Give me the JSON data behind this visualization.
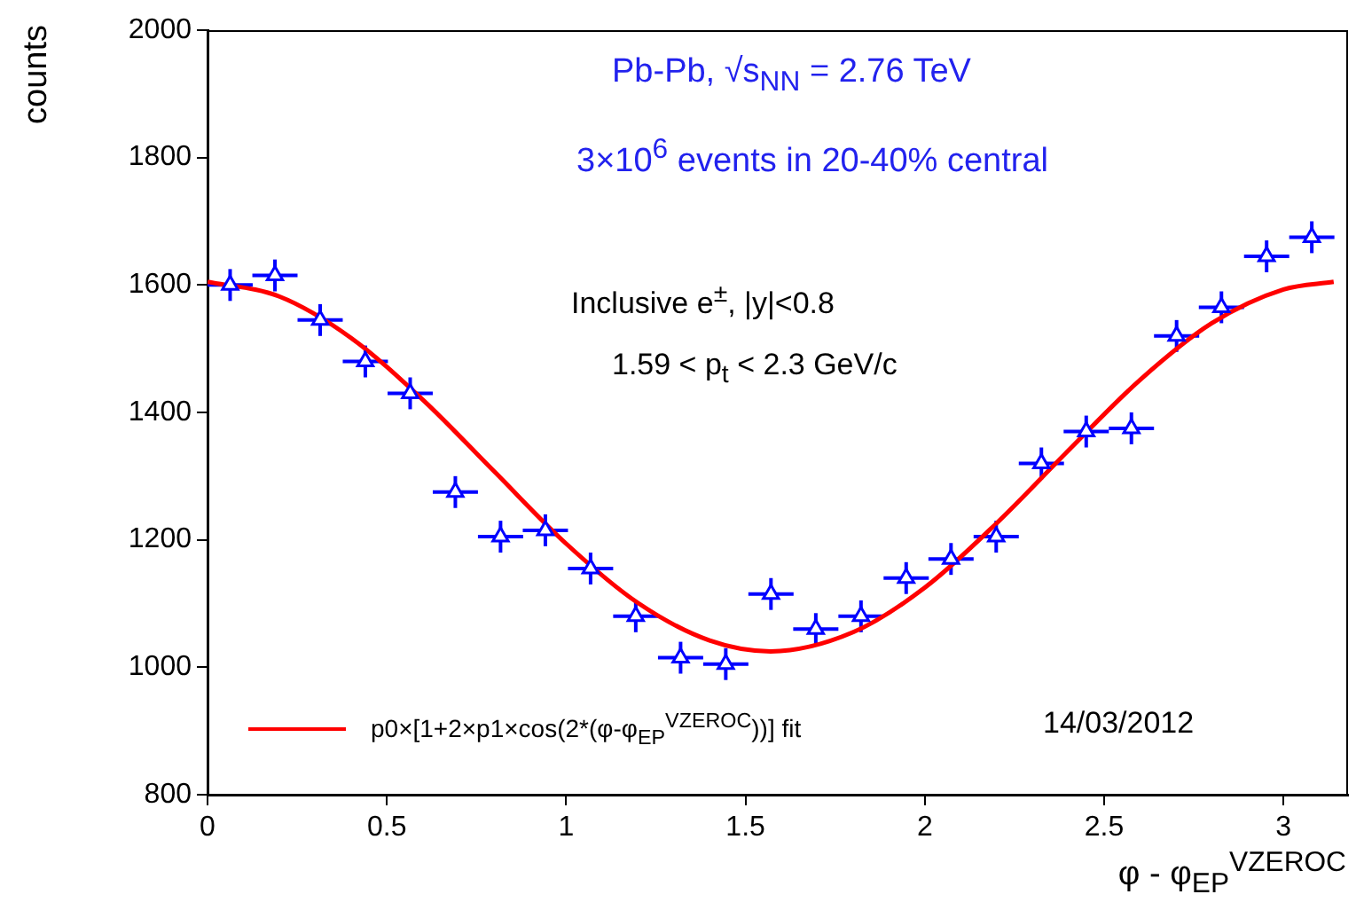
{
  "chart_data": {
    "type": "scatter",
    "xlabel": "φ - φ$_{EP}$$^{VZEROC}$",
    "ylabel": "counts",
    "xlim": [
      0,
      3.18
    ],
    "ylim": [
      800,
      2000
    ],
    "xticks": [
      0,
      0.5,
      1,
      1.5,
      2,
      2.5,
      3
    ],
    "yticks": [
      800,
      1000,
      1200,
      1400,
      1600,
      1800,
      2000
    ],
    "grid": false,
    "legend": "bottom left",
    "marker": "triangle",
    "annotations": [
      "Pb-Pb, √s$_{NN}$ = 2.76 TeV",
      "3×10$^{6}$ events in 20-40% central",
      "Inclusive e$^{±}$, |y|<0.8",
      "1.59 < p$_{t}$ < 2.3 GeV/c",
      "14/03/2012"
    ],
    "series": [
      {
        "color": "#0000ff",
        "x": [
          0.063,
          0.188,
          0.314,
          0.44,
          0.565,
          0.691,
          0.817,
          0.942,
          1.068,
          1.194,
          1.319,
          1.445,
          1.571,
          1.696,
          1.822,
          1.948,
          2.073,
          2.199,
          2.325,
          2.45,
          2.576,
          2.702,
          2.827,
          2.953,
          3.079
        ],
        "values": [
          1600,
          1615,
          1545,
          1480,
          1430,
          1275,
          1205,
          1215,
          1155,
          1080,
          1015,
          1005,
          1115,
          1060,
          1080,
          1140,
          1170,
          1205,
          1320,
          1370,
          1375,
          1520,
          1565,
          1645,
          1675
        ],
        "errors": [
          25,
          25,
          25,
          25,
          25,
          25,
          25,
          25,
          25,
          25,
          25,
          25,
          25,
          25,
          25,
          25,
          25,
          25,
          25,
          25,
          25,
          25,
          25,
          25,
          25
        ],
        "xerrors": [
          0.063,
          0.063,
          0.063,
          0.063,
          0.063,
          0.063,
          0.063,
          0.063,
          0.063,
          0.063,
          0.063,
          0.063,
          0.063,
          0.063,
          0.063,
          0.063,
          0.063,
          0.063,
          0.063,
          0.063,
          0.063,
          0.063,
          0.063,
          0.063,
          0.063
        ]
      },
      {
        "type": "line",
        "name": "p0×[1+2×p1×cos(2*(φ-φ$_{EP}$$^{VZEROC}$))] fit",
        "color": "#ff0000",
        "marker": "none",
        "x": [
          0,
          0.2,
          0.4,
          0.6,
          0.8,
          1.0,
          1.2,
          1.4,
          1.57,
          1.8,
          2.0,
          2.2,
          2.4,
          2.6,
          2.8,
          3.0,
          3.14
        ],
        "values": [
          1605,
          1582,
          1517,
          1420,
          1307,
          1194,
          1101,
          1042,
          1025,
          1055,
          1125,
          1226,
          1340,
          1451,
          1540,
          1593,
          1605
        ]
      }
    ]
  }
}
